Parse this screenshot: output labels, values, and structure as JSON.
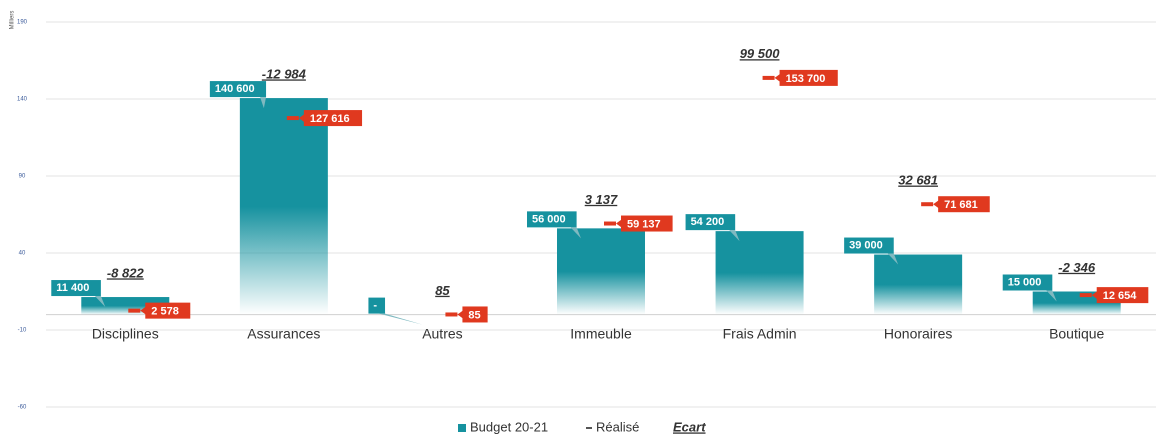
{
  "chart_data": {
    "type": "bar",
    "ylabel": "Milliers",
    "categories": [
      "Disciplines",
      "Assurances",
      "Autres",
      "Immeuble",
      "Frais Admin",
      "Honoraires",
      "Boutique"
    ],
    "series": [
      {
        "name": "Budget 20-21",
        "color": "#16929f",
        "values": [
          11.4,
          140.6,
          0,
          56,
          54.2,
          39,
          15
        ],
        "value_labels": [
          "11 400",
          "140 600",
          "-",
          "56 000",
          "54 200",
          "39 000",
          "15 000"
        ]
      },
      {
        "name": "Réalisé",
        "color": "#e0391f",
        "values": [
          2.578,
          127.616,
          0.085,
          59.137,
          153.7,
          71.681,
          12.654
        ],
        "value_labels": [
          "2 578",
          "127 616",
          "85",
          "59 137",
          "153 700",
          "71 681",
          "12 654"
        ]
      },
      {
        "name": "Ecart",
        "color": "#333333",
        "values": [
          -8.822,
          -12.984,
          0.085,
          3.137,
          99.5,
          32.681,
          -2.346
        ],
        "value_labels": [
          "-8 822",
          "-12 984",
          "85",
          "3 137",
          "99 500",
          "32 681",
          "-2 346"
        ]
      }
    ],
    "ylim": [
      -60,
      190
    ],
    "yticks": [
      -60,
      -10,
      40,
      90,
      140,
      190
    ],
    "grid": true
  }
}
